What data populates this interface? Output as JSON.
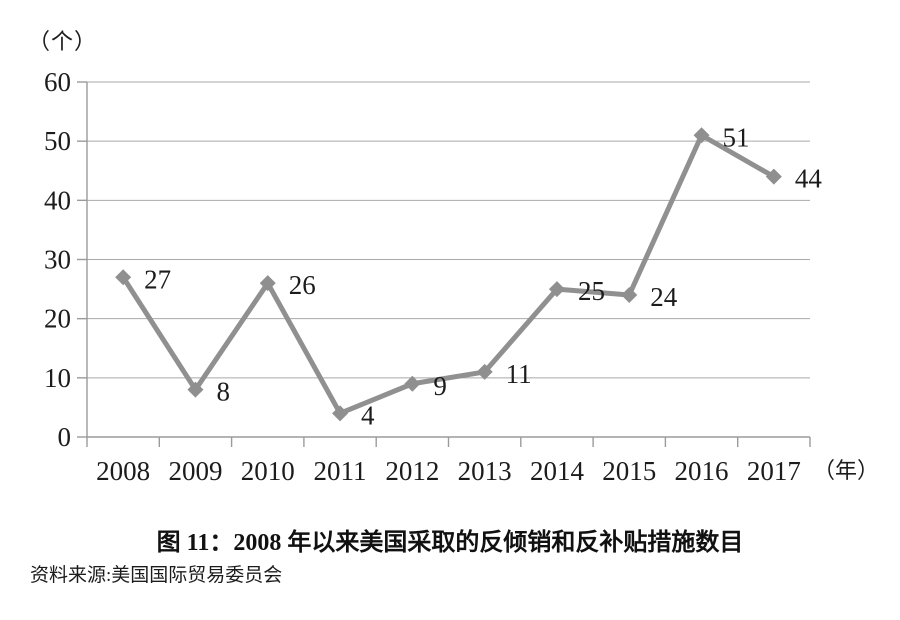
{
  "figure": {
    "caption": "图 11：2008 年以来美国采取的反倾销和反补贴措施数目",
    "source": "资料来源:美国国际贸易委员会"
  },
  "chart_data": {
    "type": "line",
    "title": "图 11：2008 年以来美国采取的反倾销和反补贴措施数目",
    "source": "资料来源:美国国际贸易委员会",
    "categories": [
      "2008",
      "2009",
      "2010",
      "2011",
      "2012",
      "2013",
      "2014",
      "2015",
      "2016",
      "2017"
    ],
    "values": [
      27,
      8,
      26,
      4,
      9,
      11,
      25,
      24,
      51,
      44
    ],
    "data_labels": [
      "27",
      "8",
      "26",
      "4",
      "9",
      "11",
      "25",
      "24",
      "51",
      "44"
    ],
    "y_unit_label": "（个）",
    "x_axis_suffix": "（年）",
    "ylim": [
      0,
      60
    ],
    "yticks": [
      0,
      10,
      20,
      30,
      40,
      50,
      60
    ],
    "grid": true,
    "legend": "none",
    "marker": "diamond",
    "line_color": "#909090",
    "marker_color": "#8f8f8f",
    "grid_color": "#a9a9a9",
    "axis_color": "#9b9b9b",
    "text_color": "#1c1c1c"
  }
}
